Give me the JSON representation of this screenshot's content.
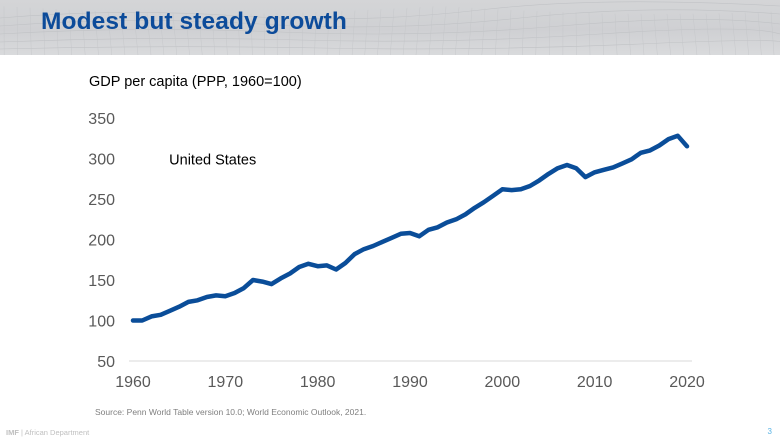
{
  "slide": {
    "title": "Modest but steady growth",
    "source": "Source: Penn World Table version 10.0; World Economic Outlook, 2021.",
    "footer": {
      "org": "IMF",
      "separator": " | ",
      "department": "African Department"
    },
    "page_number": "3",
    "colors": {
      "title": "#0c4b9a",
      "line": "#0a4d99",
      "axis": "#d9d9d9",
      "ticks": "#595959",
      "page_number": "#5bb4e5"
    }
  },
  "chart_data": {
    "type": "line",
    "title": "GDP per capita (PPP, 1960=100)",
    "xlabel": "",
    "ylabel": "GDP per capita (PPP, 1960=100)",
    "xlim": [
      1960,
      2020
    ],
    "ylim": [
      50,
      350
    ],
    "xticks": [
      1960,
      1970,
      1980,
      1990,
      2000,
      2010,
      2020
    ],
    "yticks": [
      50,
      100,
      150,
      200,
      250,
      300,
      350
    ],
    "grid": false,
    "legend": "none",
    "annotations": [
      {
        "text": "United States",
        "x": 1965,
        "y": 295
      }
    ],
    "series": [
      {
        "name": "United States",
        "x": [
          1960,
          1961,
          1962,
          1963,
          1964,
          1965,
          1966,
          1967,
          1968,
          1969,
          1970,
          1971,
          1972,
          1973,
          1974,
          1975,
          1976,
          1977,
          1978,
          1979,
          1980,
          1981,
          1982,
          1983,
          1984,
          1985,
          1986,
          1987,
          1988,
          1989,
          1990,
          1991,
          1992,
          1993,
          1994,
          1995,
          1996,
          1997,
          1998,
          1999,
          2000,
          2001,
          2002,
          2003,
          2004,
          2005,
          2006,
          2007,
          2008,
          2009,
          2010,
          2011,
          2012,
          2013,
          2014,
          2015,
          2016,
          2017,
          2018,
          2019,
          2020
        ],
        "values": [
          100,
          100,
          105,
          107,
          112,
          117,
          123,
          125,
          129,
          131,
          130,
          134,
          140,
          150,
          148,
          145,
          152,
          158,
          166,
          170,
          167,
          168,
          163,
          171,
          182,
          188,
          192,
          197,
          202,
          207,
          208,
          204,
          212,
          215,
          221,
          225,
          231,
          239,
          246,
          254,
          262,
          261,
          262,
          266,
          273,
          281,
          288,
          292,
          288,
          277,
          283,
          286,
          289,
          294,
          299,
          307,
          310,
          316,
          324,
          328,
          315
        ]
      }
    ]
  }
}
